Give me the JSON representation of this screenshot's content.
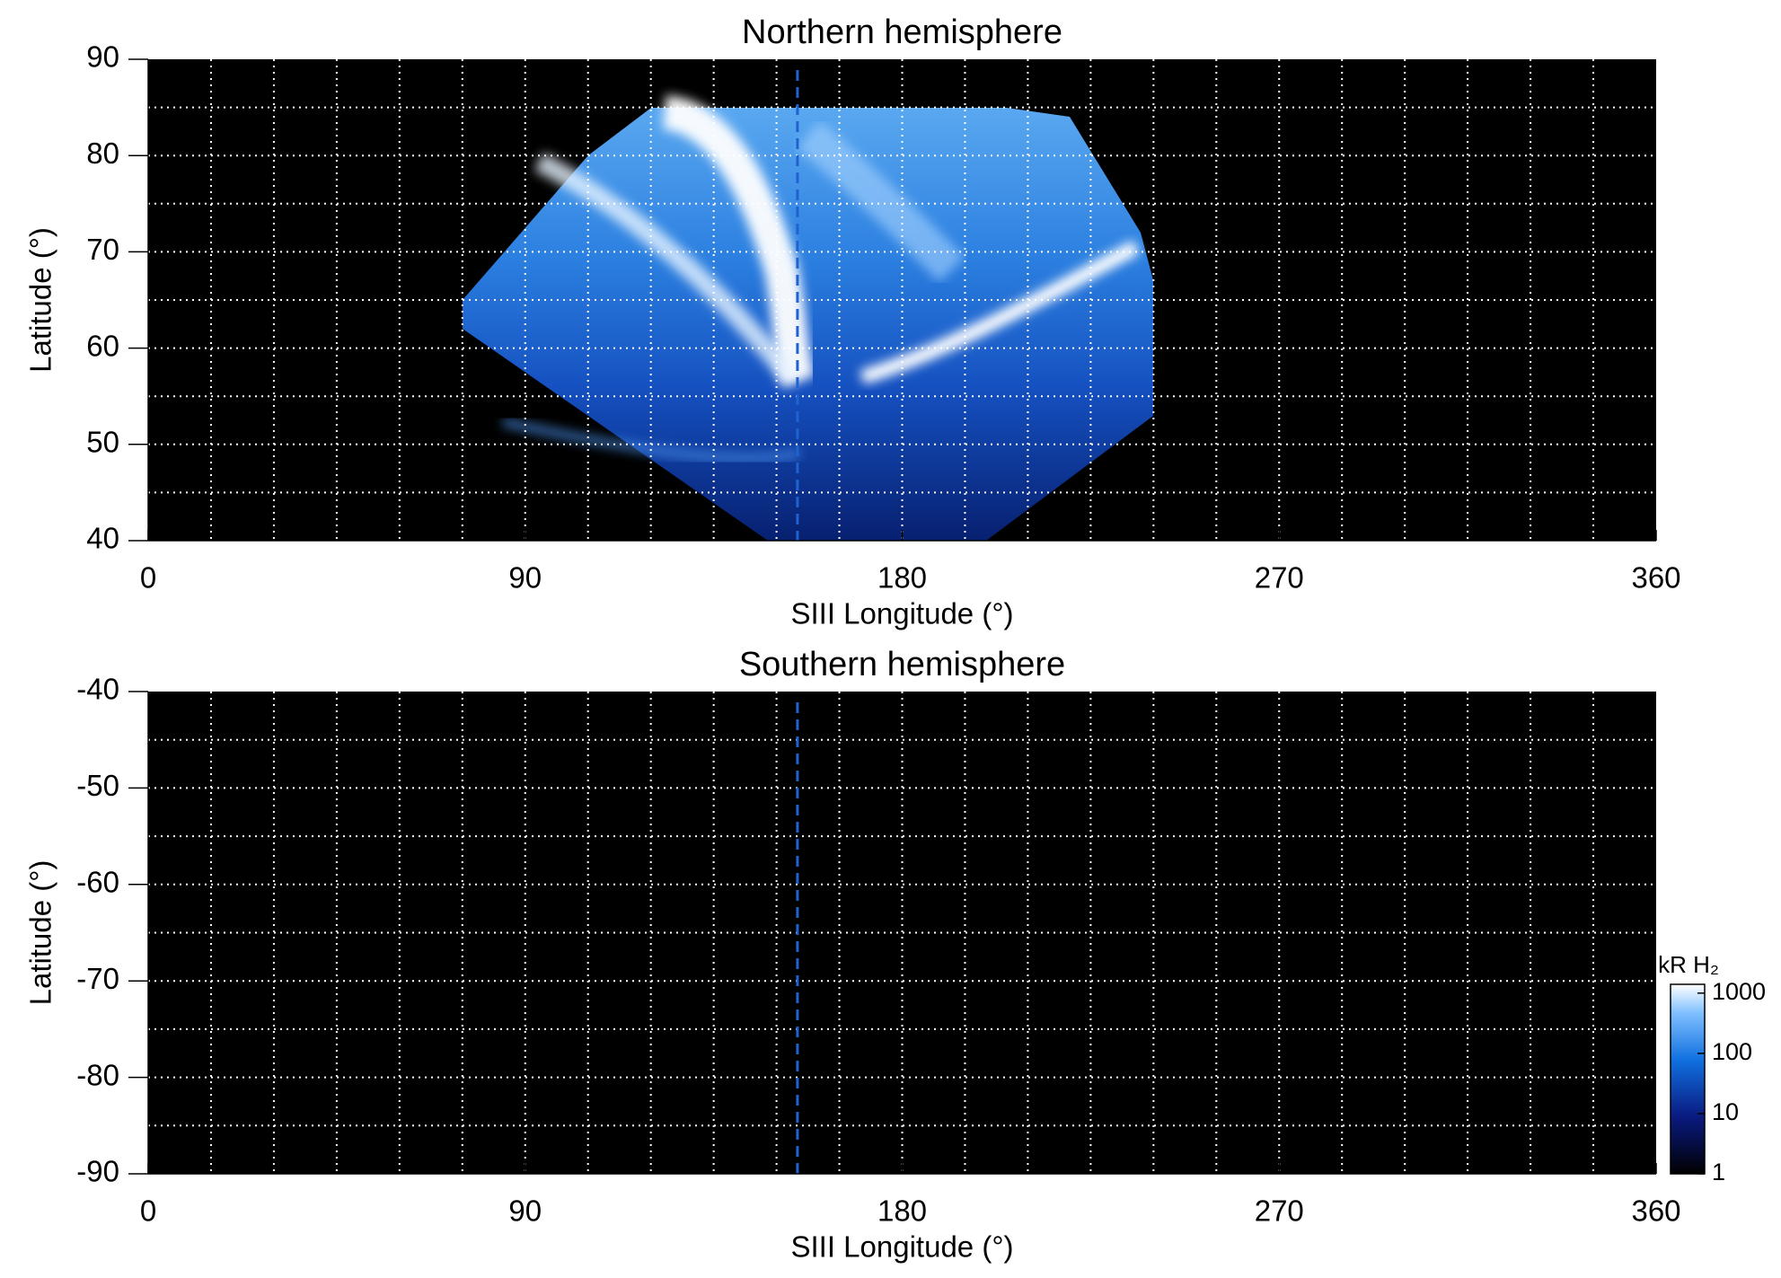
{
  "chart_data": [
    {
      "type": "map",
      "title": "Northern hemisphere",
      "xlabel": "SIII Longitude (°)",
      "ylabel": "Latitude (°)",
      "xlim": [
        0,
        360
      ],
      "ylim": [
        40,
        90
      ],
      "xticks": [
        0,
        90,
        180,
        270,
        360
      ],
      "yticks": [
        40,
        50,
        60,
        70,
        80,
        90
      ],
      "xgrid": [
        15,
        30,
        45,
        60,
        75,
        90,
        105,
        120,
        135,
        150,
        165,
        180,
        195,
        210,
        225,
        240,
        255,
        270,
        285,
        300,
        315,
        330,
        345
      ],
      "ygrid": [
        45,
        50,
        55,
        60,
        65,
        70,
        75,
        80,
        85
      ],
      "reference_x": 155,
      "reference_color": "#1f62d0",
      "aurora": true
    },
    {
      "type": "map",
      "title": "Southern hemisphere",
      "xlabel": "SIII Longitude (°)",
      "ylabel": "Latitude (°)",
      "xlim": [
        0,
        360
      ],
      "ylim": [
        -90,
        -40
      ],
      "xticks": [
        0,
        90,
        180,
        270,
        360
      ],
      "yticks": [
        -90,
        -80,
        -70,
        -60,
        -50,
        -40
      ],
      "xgrid": [
        15,
        30,
        45,
        60,
        75,
        90,
        105,
        120,
        135,
        150,
        165,
        180,
        195,
        210,
        225,
        240,
        255,
        270,
        285,
        300,
        315,
        330,
        345
      ],
      "ygrid": [
        -85,
        -80,
        -75,
        -70,
        -65,
        -60,
        -55,
        -50,
        -45
      ],
      "reference_x": 155,
      "reference_color": "#1f62d0",
      "aurora": false,
      "colorbar": {
        "label": "kR H₂",
        "scale": "log",
        "lim": [
          1,
          1400
        ],
        "ticks": [
          1,
          10,
          100,
          1000
        ]
      }
    }
  ]
}
